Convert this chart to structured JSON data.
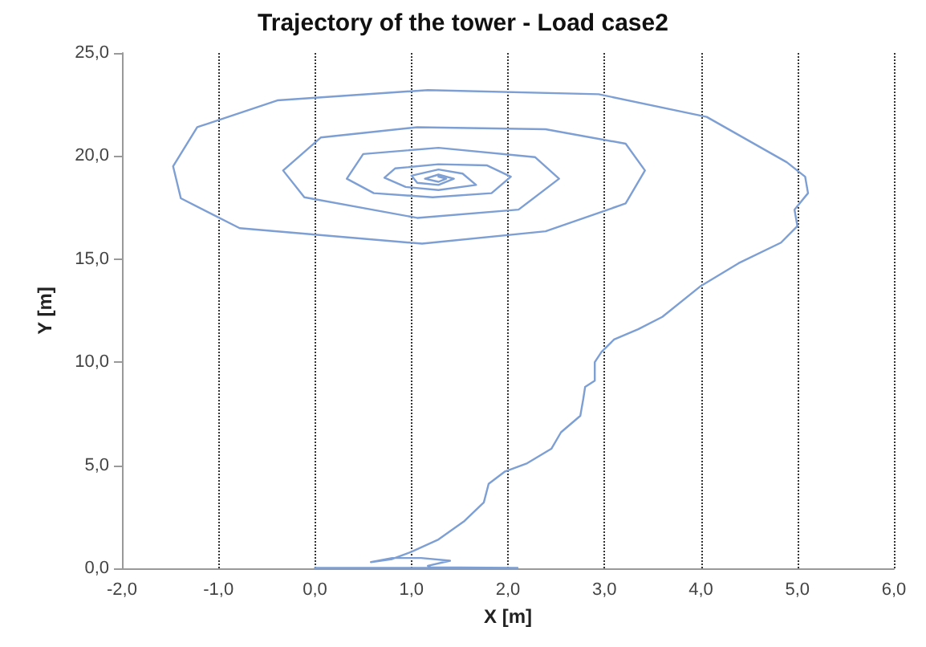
{
  "chart_data": {
    "type": "line",
    "title": "Trajectory of the tower - Load case2",
    "xlabel": "X [m]",
    "ylabel": "Y [m]",
    "xlim": [
      -2,
      6
    ],
    "ylim": [
      0,
      25
    ],
    "xticks": [
      {
        "value": -2,
        "label": "-2,0"
      },
      {
        "value": -1,
        "label": "-1,0"
      },
      {
        "value": 0,
        "label": "0,0"
      },
      {
        "value": 1,
        "label": "1,0"
      },
      {
        "value": 2,
        "label": "2,0"
      },
      {
        "value": 3,
        "label": "3,0"
      },
      {
        "value": 4,
        "label": "4,0"
      },
      {
        "value": 5,
        "label": "5,0"
      },
      {
        "value": 6,
        "label": "6,0"
      }
    ],
    "yticks": [
      {
        "value": 0,
        "label": "0,0"
      },
      {
        "value": 5,
        "label": "5,0"
      },
      {
        "value": 10,
        "label": "10,0"
      },
      {
        "value": 15,
        "label": "15,0"
      },
      {
        "value": 20,
        "label": "20,0"
      },
      {
        "value": 25,
        "label": "25,0"
      }
    ],
    "grid": "x",
    "marker": "none",
    "line_style": "solid",
    "series": [
      {
        "color": "#7d9fd3",
        "x": [
          0,
          1,
          2.1,
          1.2,
          1.17,
          1.4,
          1.1,
          0.8,
          0.58,
          0.8,
          1.0,
          1.28,
          1.55,
          1.75,
          1.8,
          1.97,
          2.2,
          2.45,
          2.55,
          2.75,
          2.78,
          2.8,
          2.9,
          2.9,
          2.97,
          3.1,
          3.35,
          3.6,
          4.0,
          4.39,
          4.83,
          5.0,
          4.97,
          5.11,
          5.08,
          4.89,
          4.06,
          2.94,
          1.17,
          -0.39,
          -1.22,
          -1.47,
          -1.39,
          -0.78,
          1.11,
          2.39,
          3.22,
          3.42,
          3.22,
          2.39,
          1.06,
          0.06,
          -0.33,
          -0.11,
          1.06,
          2.11,
          2.53,
          2.28,
          1.28,
          0.5,
          0.33,
          0.61,
          1.22,
          1.83,
          2.03,
          1.78,
          1.28,
          0.83,
          0.72,
          0.94,
          1.28,
          1.67,
          1.53,
          1.28,
          1.0,
          1.06,
          1.28,
          1.44,
          1.28,
          1.14,
          1.28,
          1.36,
          1.28
        ],
        "values": [
          0.02,
          0.02,
          0.02,
          0.05,
          0.12,
          0.37,
          0.5,
          0.5,
          0.3,
          0.45,
          0.8,
          1.4,
          2.3,
          3.2,
          4.1,
          4.7,
          5.1,
          5.8,
          6.6,
          7.4,
          8.2,
          8.8,
          9.1,
          10.0,
          10.5,
          11.1,
          11.6,
          12.2,
          13.7,
          14.8,
          15.8,
          16.6,
          17.4,
          18.2,
          19.0,
          19.7,
          21.9,
          23.0,
          23.2,
          22.7,
          21.4,
          19.5,
          17.95,
          16.5,
          15.75,
          16.35,
          17.7,
          19.3,
          20.6,
          21.3,
          21.4,
          20.9,
          19.3,
          18.0,
          17.0,
          17.4,
          18.9,
          19.95,
          20.4,
          20.1,
          18.9,
          18.2,
          18.0,
          18.2,
          19.0,
          19.55,
          19.6,
          19.4,
          18.95,
          18.5,
          18.35,
          18.6,
          19.15,
          19.35,
          19.05,
          18.7,
          18.6,
          18.9,
          19.1,
          18.9,
          18.75,
          18.9,
          19.0
        ]
      }
    ]
  }
}
